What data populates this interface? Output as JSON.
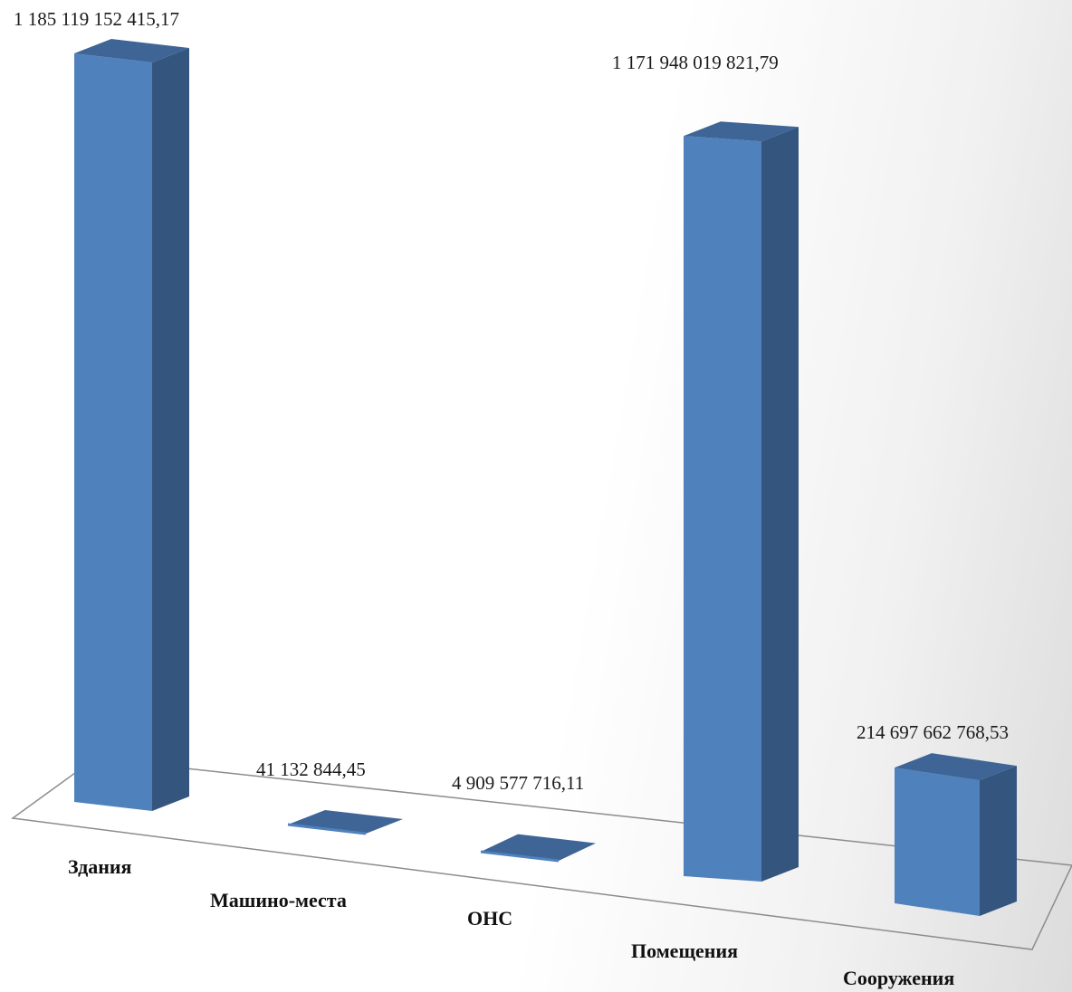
{
  "chart_data": {
    "type": "bar",
    "categories": [
      "Здания",
      "Машино-места",
      "ОНС",
      "Помещения",
      "Сооружения"
    ],
    "values": [
      1185119152415.17,
      41132844.45,
      4909577716.11,
      1171948019821.79,
      214697662768.53
    ],
    "value_labels": [
      "1 185 119 152 415,17",
      "41 132 844,45",
      "4 909 577 716,11",
      "1 171 948 019 821,79",
      "214 697 662 768,53"
    ],
    "title": "",
    "xlabel": "",
    "ylabel": "",
    "ylim": [
      0,
      1185119152415.17
    ],
    "grid": false,
    "legend": "none",
    "style": "3d-column"
  },
  "colors": {
    "bar_front": "#4f81bd",
    "bar_side": "#34557e",
    "bar_top": "#3e6596",
    "floor_line": "#8c8c8c"
  }
}
